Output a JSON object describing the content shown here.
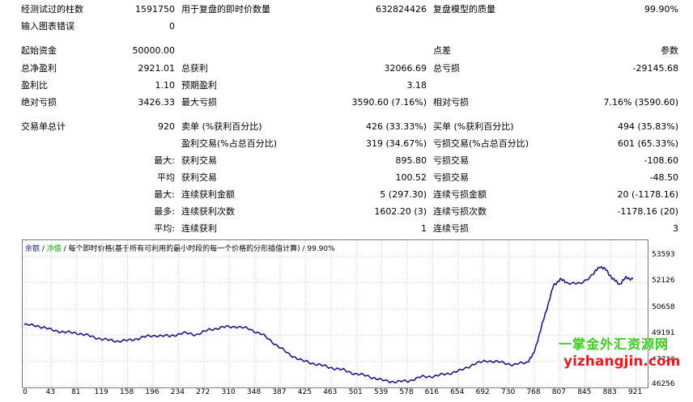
{
  "rows": [
    {
      "top": "r0",
      "c1": "经测试过的柱数",
      "v1": "1591750",
      "c2": "用于复盘的即时价数量",
      "v2": "632824426",
      "c3": "复盘模型的质量",
      "v3": "99.90%"
    },
    {
      "top": "r1",
      "c1": "输入图表错误",
      "v1": "0",
      "c2": "",
      "v2": "",
      "c3": "",
      "v3": ""
    },
    {
      "top": "r2",
      "c1": "起始资金",
      "v1": "50000.00",
      "c2": "",
      "v2": "",
      "c3": "点差",
      "v3": "参数"
    },
    {
      "top": "r3",
      "c1": "总净盈利",
      "v1": "2921.01",
      "c2": "总获利",
      "v2": "32066.69",
      "c3": "总亏损",
      "v3": "-29145.68"
    },
    {
      "top": "r4",
      "c1": "盈利比",
      "v1": "1.10",
      "c2": "预期盈利",
      "v2": "3.18",
      "c3": "",
      "v3": ""
    },
    {
      "top": "r5",
      "c1": "绝对亏损",
      "v1": "3426.33",
      "c2": "最大亏损",
      "v2": "3590.60 (7.16%)",
      "c3": "相对亏损",
      "v3": "7.16% (3590.60)"
    },
    {
      "top": "r6",
      "c1": "交易单总计",
      "v1": "920",
      "c2": "卖单 (%获利百分比)",
      "v2": "426 (33.33%)",
      "c3": "买单 (%获利百分比)",
      "v3": "494 (35.83%)"
    },
    {
      "top": "r7",
      "c1": "",
      "v1": "",
      "c2": "盈利交易(%占总百分比)",
      "v2": "319 (34.67%)",
      "c3": "亏损交易(%占总百分比)",
      "v3": "601 (65.33%)"
    },
    {
      "top": "r8",
      "c1": "",
      "v1": "最大:",
      "c2": "获利交易",
      "v2": "895.80",
      "c3": "亏损交易",
      "v3": "-108.60"
    },
    {
      "top": "r9",
      "c1": "",
      "v1": "平均",
      "c2": "获利交易",
      "v2": "100.52",
      "c3": "亏损交易",
      "v3": "-48.50"
    },
    {
      "top": "r10",
      "c1": "",
      "v1": "最大:",
      "c2": "连续获利金额",
      "v2": "5 (297.30)",
      "c3": "连续亏损金额",
      "v3": "20 (-1178.16)"
    },
    {
      "top": "r11",
      "c1": "",
      "v1": "最多:",
      "c2": "连续获利次数",
      "v2": "1602.20 (3)",
      "c3": "连续亏损次数",
      "v3": "-1178.16 (20)"
    },
    {
      "top": "r12",
      "c1": "",
      "v1": "平均:",
      "c2": "连续获利",
      "v2": "1",
      "c3": "连续亏损",
      "v3": "3"
    }
  ],
  "chart_legend": {
    "balance": "余额",
    "sep1": " / ",
    "equity": "净值",
    "rest": " / 每个即时价格(基于所有可利用的最小时段的每一个价格的分形插值计算) / 99.90%"
  },
  "watermark": {
    "line1": "一掌金外汇资源网",
    "line2": "yizhangjin.com"
  },
  "colors": {
    "line": "#1b1b8a",
    "grid": "#c8c8c8",
    "balance": "#1a1aaa",
    "equity": "#18a018"
  },
  "chart_data": {
    "type": "line",
    "ylim": [
      46256,
      54200
    ],
    "yticks": [
      "53593",
      "52126",
      "50658",
      "49191",
      "47723",
      "46256"
    ],
    "xticks": [
      "0",
      "43",
      "81",
      "119",
      "158",
      "196",
      "234",
      "272",
      "310",
      "348",
      "387",
      "425",
      "463",
      "501",
      "539",
      "578",
      "616",
      "654",
      "692",
      "730",
      "768",
      "807",
      "845",
      "883",
      "921"
    ],
    "x": [
      0,
      20,
      40,
      60,
      80,
      100,
      120,
      140,
      160,
      180,
      200,
      220,
      240,
      260,
      280,
      300,
      320,
      340,
      360,
      380,
      400,
      420,
      440,
      460,
      480,
      500,
      520,
      540,
      560,
      580,
      600,
      620,
      640,
      660,
      680,
      700,
      720,
      740,
      760,
      770,
      780,
      790,
      800,
      810,
      820,
      840,
      860,
      870,
      880,
      890,
      900,
      910,
      920
    ],
    "series": [
      {
        "values": [
          50000,
          49950,
          49700,
          49550,
          49500,
          49300,
          49100,
          49000,
          49050,
          49250,
          49350,
          49300,
          49500,
          49400,
          49700,
          49850,
          49900,
          49750,
          49400,
          48800,
          48200,
          47800,
          47600,
          47400,
          47250,
          47000,
          46850,
          46600,
          46500,
          46550,
          46800,
          46850,
          47000,
          47200,
          47600,
          47800,
          47700,
          47550,
          47700,
          48200,
          49600,
          51000,
          52400,
          52800,
          52600,
          52500,
          53100,
          53600,
          53350,
          52800,
          52500,
          52900,
          52800
        ]
      }
    ]
  }
}
